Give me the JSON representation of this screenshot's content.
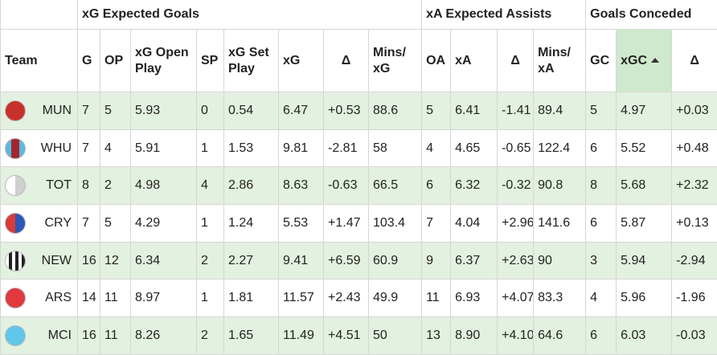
{
  "table": {
    "groups": [
      "xG Expected Goals",
      "xA Expected Assists",
      "Goals Conceded"
    ],
    "columns": [
      "Team",
      "G",
      "OP",
      "xG Open Play",
      "SP",
      "xG Set Play",
      "xG",
      "Δ",
      "Mins/ xG",
      "OA",
      "xA",
      "Δ",
      "Mins/ xA",
      "GC",
      "xGC",
      "Δ"
    ],
    "rows": [
      [
        "MUN",
        "7",
        "5",
        "5.93",
        "0",
        "0.54",
        "6.47",
        "+0.53",
        "88.6",
        "5",
        "6.41",
        "-1.41",
        "89.4",
        "5",
        "4.97",
        "+0.03"
      ],
      [
        "WHU",
        "7",
        "4",
        "5.91",
        "1",
        "1.53",
        "9.81",
        "-2.81",
        "58",
        "4",
        "4.65",
        "-0.65",
        "122.4",
        "6",
        "5.52",
        "+0.48"
      ],
      [
        "TOT",
        "8",
        "2",
        "4.98",
        "4",
        "2.86",
        "8.63",
        "-0.63",
        "66.5",
        "6",
        "6.32",
        "-0.32",
        "90.8",
        "8",
        "5.68",
        "+2.32"
      ],
      [
        "CRY",
        "7",
        "5",
        "4.29",
        "1",
        "1.24",
        "5.53",
        "+1.47",
        "103.4",
        "7",
        "4.04",
        "+2.96",
        "141.6",
        "6",
        "5.87",
        "+0.13"
      ],
      [
        "NEW",
        "16",
        "12",
        "6.34",
        "2",
        "2.27",
        "9.41",
        "+6.59",
        "60.9",
        "9",
        "6.37",
        "+2.63",
        "90",
        "3",
        "5.94",
        "-2.94"
      ],
      [
        "ARS",
        "14",
        "11",
        "8.97",
        "1",
        "1.81",
        "11.57",
        "+2.43",
        "49.9",
        "11",
        "6.93",
        "+4.07",
        "83.3",
        "4",
        "5.96",
        "-1.96"
      ],
      [
        "MCI",
        "16",
        "11",
        "8.26",
        "2",
        "1.65",
        "11.49",
        "+4.51",
        "50",
        "13",
        "8.90",
        "+4.10",
        "64.6",
        "6",
        "6.03",
        "-0.03"
      ]
    ]
  }
}
